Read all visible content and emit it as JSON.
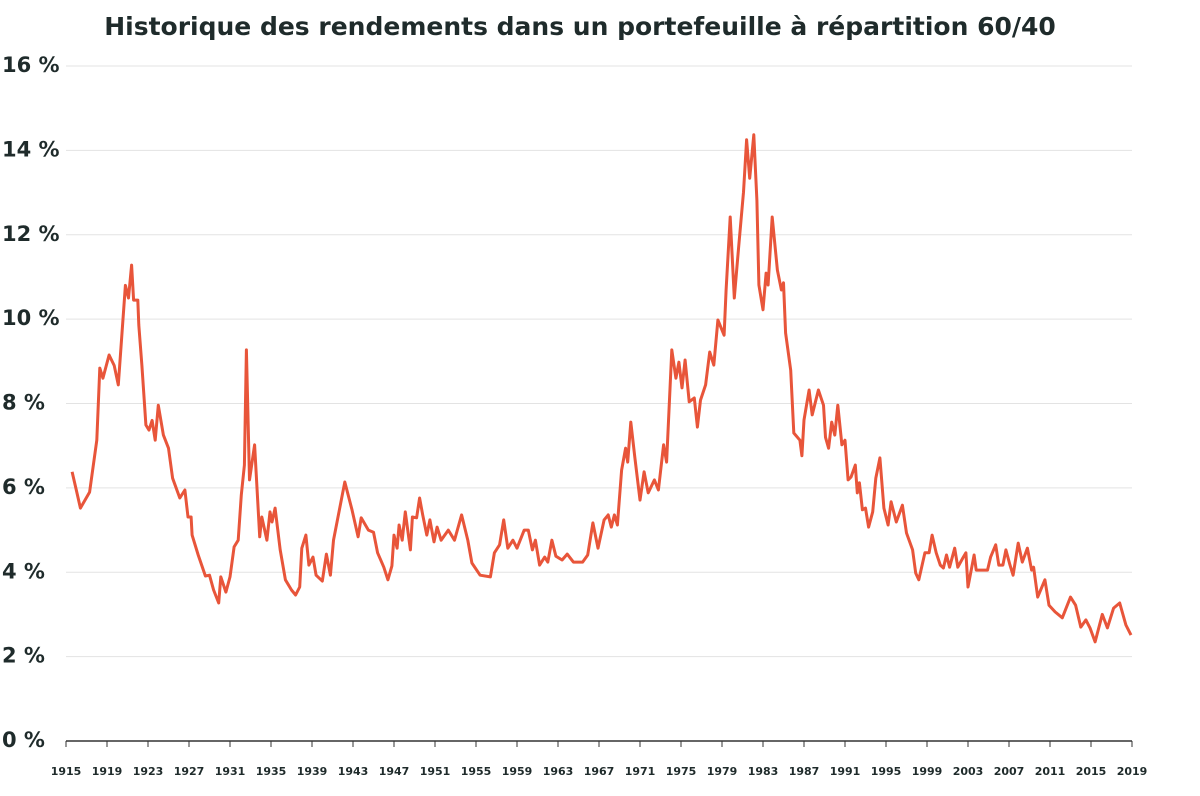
{
  "chart_data": {
    "type": "line",
    "title": "Historique des rendements dans un portefeuille à répartition 60/40",
    "x": [
      1915.6,
      1916.0,
      1916.4,
      1917.3,
      1918.0,
      1918.3,
      1918.6,
      1919.2,
      1919.7,
      1920.1,
      1920.8,
      1921.1,
      1921.4,
      1921.6,
      1922.0,
      1922.1,
      1922.4,
      1922.8,
      1923.1,
      1923.4,
      1923.7,
      1924.0,
      1924.5,
      1925.0,
      1925.4,
      1926.1,
      1926.6,
      1926.9,
      1927.2,
      1927.3,
      1927.9,
      1928.6,
      1929.0,
      1929.4,
      1929.9,
      1930.1,
      1930.6,
      1931.0,
      1931.4,
      1931.8,
      1932.1,
      1932.4,
      1932.6,
      1932.9,
      1933.4,
      1933.9,
      1934.1,
      1934.6,
      1934.9,
      1935.1,
      1935.4,
      1935.9,
      1936.4,
      1937.0,
      1937.4,
      1937.8,
      1938.0,
      1938.4,
      1938.7,
      1939.1,
      1939.4,
      1940.0,
      1940.4,
      1940.8,
      1941.1,
      1942.2,
      1942.9,
      1943.5,
      1943.8,
      1944.5,
      1945.0,
      1945.4,
      1946.0,
      1946.4,
      1946.8,
      1947.0,
      1947.3,
      1947.5,
      1947.8,
      1948.1,
      1948.6,
      1948.8,
      1949.2,
      1949.5,
      1949.8,
      1950.2,
      1950.5,
      1950.9,
      1951.2,
      1951.6,
      1952.3,
      1952.9,
      1953.6,
      1954.2,
      1954.6,
      1955.4,
      1956.4,
      1956.8,
      1957.3,
      1957.7,
      1958.1,
      1958.6,
      1959.0,
      1959.7,
      1960.1,
      1960.5,
      1960.8,
      1961.2,
      1961.7,
      1962.0,
      1962.4,
      1962.8,
      1963.4,
      1963.9,
      1964.5,
      1965.4,
      1965.9,
      1966.4,
      1966.9,
      1967.5,
      1967.9,
      1968.2,
      1968.5,
      1968.8,
      1969.2,
      1969.6,
      1969.8,
      1970.1,
      1970.5,
      1971.0,
      1971.4,
      1971.8,
      1972.4,
      1972.8,
      1973.3,
      1973.6,
      1974.1,
      1974.5,
      1974.8,
      1975.1,
      1975.4,
      1975.8,
      1976.3,
      1976.6,
      1976.9,
      1977.4,
      1977.8,
      1978.2,
      1978.6,
      1979.2,
      1979.4,
      1979.8,
      1980.2,
      1980.6,
      1981.1,
      1981.4,
      1981.7,
      1982.1,
      1982.4,
      1982.6,
      1983.0,
      1983.3,
      1983.5,
      1983.9,
      1984.4,
      1984.8,
      1985.0,
      1985.2,
      1985.7,
      1986.0,
      1986.6,
      1986.8,
      1987.0,
      1987.5,
      1987.8,
      1988.4,
      1988.9,
      1989.1,
      1989.4,
      1989.7,
      1990.0,
      1990.3,
      1990.7,
      1991.0,
      1991.3,
      1991.6,
      1992.0,
      1992.2,
      1992.4,
      1992.7,
      1993.0,
      1993.3,
      1993.7,
      1994.0,
      1994.4,
      1994.8,
      1995.2,
      1995.5,
      1996.0,
      1996.6,
      1997.0,
      1997.6,
      1997.9,
      1998.2,
      1998.8,
      1999.2,
      1999.5,
      1999.9,
      2000.3,
      2000.6,
      2000.9,
      2001.2,
      2001.7,
      2002.0,
      2002.5,
      2002.8,
      2003.0,
      2003.6,
      2003.8,
      2004.3,
      2004.9,
      2005.2,
      2005.7,
      2006.0,
      2006.4,
      2006.7,
      2007.1,
      2007.4,
      2007.9,
      2008.3,
      2008.8,
      2009.2,
      2009.4,
      2009.8,
      2010.5,
      2010.9,
      2011.5,
      2012.2,
      2013.0,
      2013.5,
      2014.0,
      2014.5,
      2014.9,
      2015.4,
      2016.1,
      2016.6,
      2017.2,
      2017.8,
      2018.4,
      2018.9
    ],
    "series": [
      {
        "name": "60/40",
        "color": "#e8553a",
        "values": [
          6.38,
          5.95,
          5.52,
          5.9,
          7.13,
          8.84,
          8.6,
          9.15,
          8.9,
          8.44,
          10.8,
          10.5,
          11.28,
          10.45,
          10.45,
          9.86,
          8.9,
          7.49,
          7.37,
          7.6,
          7.13,
          7.96,
          7.25,
          6.94,
          6.23,
          5.76,
          5.95,
          5.31,
          5.31,
          4.88,
          4.41,
          3.91,
          3.93,
          3.58,
          3.27,
          3.89,
          3.53,
          3.89,
          4.6,
          4.76,
          5.83,
          6.54,
          9.27,
          6.19,
          7.02,
          4.84,
          5.31,
          4.76,
          5.43,
          5.19,
          5.52,
          4.53,
          3.82,
          3.58,
          3.46,
          3.65,
          4.57,
          4.88,
          4.17,
          4.36,
          3.93,
          3.79,
          4.43,
          3.93,
          4.76,
          6.14,
          5.48,
          4.84,
          5.29,
          5.0,
          4.95,
          4.46,
          4.12,
          3.82,
          4.15,
          4.88,
          4.57,
          5.12,
          4.76,
          5.43,
          4.53,
          5.31,
          5.29,
          5.76,
          5.36,
          4.88,
          5.24,
          4.72,
          5.07,
          4.76,
          5.0,
          4.76,
          5.36,
          4.76,
          4.22,
          3.93,
          3.89,
          4.46,
          4.65,
          5.24,
          4.57,
          4.76,
          4.57,
          5.0,
          5.0,
          4.53,
          4.76,
          4.17,
          4.36,
          4.24,
          4.76,
          4.38,
          4.29,
          4.43,
          4.24,
          4.24,
          4.41,
          5.17,
          4.57,
          5.24,
          5.36,
          5.07,
          5.36,
          5.12,
          6.42,
          6.94,
          6.61,
          7.56,
          6.71,
          5.71,
          6.38,
          5.88,
          6.19,
          5.95,
          7.02,
          6.61,
          9.27,
          8.6,
          8.98,
          8.37,
          9.03,
          8.04,
          8.13,
          7.44,
          8.08,
          8.44,
          9.22,
          8.91,
          9.98,
          9.62,
          10.69,
          12.42,
          10.5,
          11.64,
          13.01,
          14.25,
          13.34,
          14.37,
          12.82,
          10.81,
          10.22,
          11.09,
          10.81,
          12.42,
          11.16,
          10.69,
          10.86,
          9.67,
          8.79,
          7.3,
          7.13,
          6.76,
          7.61,
          8.32,
          7.73,
          8.32,
          7.96,
          7.2,
          6.94,
          7.56,
          7.25,
          7.96,
          7.02,
          7.13,
          6.19,
          6.26,
          6.54,
          5.88,
          6.12,
          5.48,
          5.52,
          5.07,
          5.43,
          6.23,
          6.71,
          5.52,
          5.12,
          5.67,
          5.19,
          5.59,
          4.93,
          4.53,
          3.98,
          3.82,
          4.46,
          4.46,
          4.88,
          4.46,
          4.17,
          4.1,
          4.41,
          4.12,
          4.57,
          4.12,
          4.34,
          4.46,
          3.65,
          4.41,
          4.05,
          4.05,
          4.05,
          4.36,
          4.65,
          4.17,
          4.17,
          4.53,
          4.17,
          3.93,
          4.69,
          4.24,
          4.57,
          4.05,
          4.12,
          3.41,
          3.82,
          3.22,
          3.06,
          2.92,
          3.41,
          3.22,
          2.7,
          2.87,
          2.68,
          2.35,
          3.0,
          2.68,
          3.15,
          3.27,
          2.75,
          2.51
        ]
      }
    ],
    "xlim": [
      1915,
      2019
    ],
    "xticks": [
      1915,
      1919,
      1923,
      1927,
      1931,
      1935,
      1939,
      1943,
      1947,
      1951,
      1955,
      1959,
      1963,
      1967,
      1971,
      1975,
      1979,
      1983,
      1987,
      1991,
      1995,
      1999,
      2003,
      2007,
      2011,
      2015,
      2019
    ],
    "ylim": [
      0,
      16
    ],
    "yticks": [
      {
        "value": 0,
        "label": "0 %"
      },
      {
        "value": 2,
        "label": "2 %"
      },
      {
        "value": 4,
        "label": "4 %"
      },
      {
        "value": 6,
        "label": "6 %"
      },
      {
        "value": 8,
        "label": "8 %"
      },
      {
        "value": 10,
        "label": "10 %"
      },
      {
        "value": 12,
        "label": "12 %"
      },
      {
        "value": 14,
        "label": "14 %"
      },
      {
        "value": 16,
        "label": "16 %"
      }
    ],
    "grid": true
  }
}
